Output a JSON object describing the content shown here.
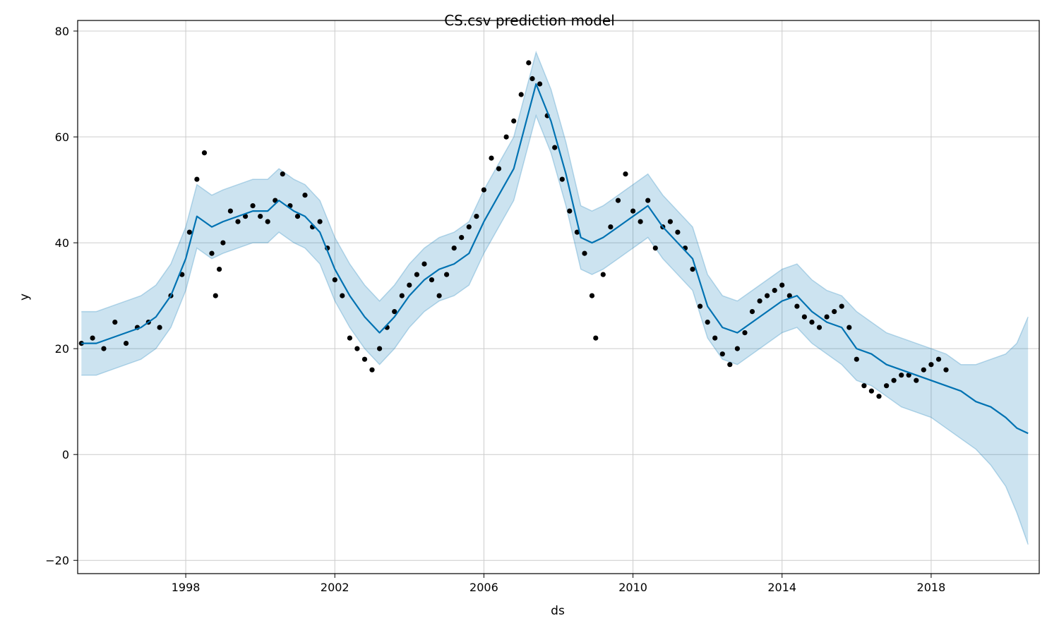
{
  "chart_data": {
    "type": "line",
    "title": "CS.csv prediction model",
    "xlabel": "ds",
    "ylabel": "y",
    "xlim": [
      1995.1,
      2020.9
    ],
    "ylim": [
      -22.5,
      82
    ],
    "x_ticks": [
      1998,
      2002,
      2006,
      2010,
      2014,
      2018
    ],
    "y_ticks": [
      -20,
      0,
      20,
      40,
      60,
      80
    ],
    "y_tick_labels": [
      "−20",
      "0",
      "20",
      "40",
      "60",
      "80"
    ],
    "grid": true,
    "colors": {
      "forecast": "#0072b2",
      "interval_fill": "#0072b2",
      "observed": "#000000"
    },
    "series": [
      {
        "kind": "forecast",
        "x": [
          1995.2,
          1995.6,
          1996.0,
          1996.4,
          1996.8,
          1997.2,
          1997.6,
          1998.0,
          1998.3,
          1998.7,
          1999.0,
          1999.4,
          1999.8,
          2000.2,
          2000.5,
          2000.9,
          2001.2,
          2001.6,
          2002.0,
          2002.4,
          2002.8,
          2003.2,
          2003.6,
          2004.0,
          2004.4,
          2004.8,
          2005.2,
          2005.6,
          2006.0,
          2006.4,
          2006.8,
          2007.1,
          2007.4,
          2007.8,
          2008.2,
          2008.6,
          2008.9,
          2009.2,
          2009.6,
          2010.0,
          2010.4,
          2010.8,
          2011.2,
          2011.6,
          2012.0,
          2012.4,
          2012.8,
          2013.2,
          2013.6,
          2014.0,
          2014.4,
          2014.8,
          2015.2,
          2015.6,
          2016.0,
          2016.4,
          2016.8,
          2017.2,
          2017.6,
          2018.0,
          2018.4,
          2018.8,
          2019.2,
          2019.6,
          2020.0,
          2020.3,
          2020.6
        ],
        "y": [
          21,
          21,
          22,
          23,
          24,
          26,
          30,
          37,
          45,
          43,
          44,
          45,
          46,
          46,
          48,
          46,
          45,
          42,
          35,
          30,
          26,
          23,
          26,
          30,
          33,
          35,
          36,
          38,
          44,
          49,
          54,
          62,
          70,
          63,
          53,
          41,
          40,
          41,
          43,
          45,
          47,
          43,
          40,
          37,
          28,
          24,
          23,
          25,
          27,
          29,
          30,
          27,
          25,
          24,
          20,
          19,
          17,
          16,
          15,
          14,
          13,
          12,
          10,
          9,
          7,
          5,
          4
        ]
      },
      {
        "kind": "interval",
        "x": [
          1995.2,
          1995.6,
          1996.0,
          1996.4,
          1996.8,
          1997.2,
          1997.6,
          1998.0,
          1998.3,
          1998.7,
          1999.0,
          1999.4,
          1999.8,
          2000.2,
          2000.5,
          2000.9,
          2001.2,
          2001.6,
          2002.0,
          2002.4,
          2002.8,
          2003.2,
          2003.6,
          2004.0,
          2004.4,
          2004.8,
          2005.2,
          2005.6,
          2006.0,
          2006.4,
          2006.8,
          2007.1,
          2007.4,
          2007.8,
          2008.2,
          2008.6,
          2008.9,
          2009.2,
          2009.6,
          2010.0,
          2010.4,
          2010.8,
          2011.2,
          2011.6,
          2012.0,
          2012.4,
          2012.8,
          2013.2,
          2013.6,
          2014.0,
          2014.4,
          2014.8,
          2015.2,
          2015.6,
          2016.0,
          2016.4,
          2016.8,
          2017.2,
          2017.6,
          2018.0,
          2018.4,
          2018.8,
          2019.2,
          2019.6,
          2020.0,
          2020.3,
          2020.6
        ],
        "lower": [
          15,
          15,
          16,
          17,
          18,
          20,
          24,
          31,
          39,
          37,
          38,
          39,
          40,
          40,
          42,
          40,
          39,
          36,
          29,
          24,
          20,
          17,
          20,
          24,
          27,
          29,
          30,
          32,
          38,
          43,
          48,
          56,
          64,
          57,
          47,
          35,
          34,
          35,
          37,
          39,
          41,
          37,
          34,
          31,
          22,
          18,
          17,
          19,
          21,
          23,
          24,
          21,
          19,
          17,
          14,
          13,
          11,
          9,
          8,
          7,
          5,
          3,
          1,
          -2,
          -6,
          -11,
          -17
        ],
        "upper": [
          27,
          27,
          28,
          29,
          30,
          32,
          36,
          43,
          51,
          49,
          50,
          51,
          52,
          52,
          54,
          52,
          51,
          48,
          41,
          36,
          32,
          29,
          32,
          36,
          39,
          41,
          42,
          44,
          50,
          55,
          60,
          68,
          76,
          69,
          59,
          47,
          46,
          47,
          49,
          51,
          53,
          49,
          46,
          43,
          34,
          30,
          29,
          31,
          33,
          35,
          36,
          33,
          31,
          30,
          27,
          25,
          23,
          22,
          21,
          20,
          19,
          17,
          17,
          18,
          19,
          21,
          26
        ]
      },
      {
        "kind": "observed",
        "x": [
          1995.2,
          1995.5,
          1995.8,
          1996.1,
          1996.4,
          1996.7,
          1997.0,
          1997.3,
          1997.6,
          1997.9,
          1998.1,
          1998.3,
          1998.5,
          1998.7,
          1998.8,
          1998.9,
          1999.0,
          1999.2,
          1999.4,
          1999.6,
          1999.8,
          2000.0,
          2000.2,
          2000.4,
          2000.6,
          2000.8,
          2001.0,
          2001.2,
          2001.4,
          2001.6,
          2001.8,
          2002.0,
          2002.2,
          2002.4,
          2002.6,
          2002.8,
          2003.0,
          2003.2,
          2003.4,
          2003.6,
          2003.8,
          2004.0,
          2004.2,
          2004.4,
          2004.6,
          2004.8,
          2005.0,
          2005.2,
          2005.4,
          2005.6,
          2005.8,
          2006.0,
          2006.2,
          2006.4,
          2006.6,
          2006.8,
          2007.0,
          2007.2,
          2007.3,
          2007.5,
          2007.7,
          2007.9,
          2008.1,
          2008.3,
          2008.5,
          2008.7,
          2008.9,
          2009.0,
          2009.2,
          2009.4,
          2009.6,
          2009.8,
          2010.0,
          2010.2,
          2010.4,
          2010.6,
          2010.8,
          2011.0,
          2011.2,
          2011.4,
          2011.6,
          2011.8,
          2012.0,
          2012.2,
          2012.4,
          2012.6,
          2012.8,
          2013.0,
          2013.2,
          2013.4,
          2013.6,
          2013.8,
          2014.0,
          2014.2,
          2014.4,
          2014.6,
          2014.8,
          2015.0,
          2015.2,
          2015.4,
          2015.6,
          2015.8,
          2016.0,
          2016.2,
          2016.4,
          2016.6,
          2016.8,
          2017.0,
          2017.2,
          2017.4,
          2017.6,
          2017.8,
          2018.0,
          2018.2,
          2018.4
        ],
        "y": [
          21,
          22,
          20,
          25,
          21,
          24,
          25,
          24,
          30,
          34,
          42,
          52,
          57,
          38,
          30,
          35,
          40,
          46,
          44,
          45,
          47,
          45,
          44,
          48,
          53,
          47,
          45,
          49,
          43,
          44,
          39,
          33,
          30,
          22,
          20,
          18,
          16,
          20,
          24,
          27,
          30,
          32,
          34,
          36,
          33,
          30,
          34,
          39,
          41,
          43,
          45,
          50,
          56,
          54,
          60,
          63,
          68,
          74,
          71,
          70,
          64,
          58,
          52,
          46,
          42,
          38,
          30,
          22,
          34,
          43,
          48,
          53,
          46,
          44,
          48,
          39,
          43,
          44,
          42,
          39,
          35,
          28,
          25,
          22,
          19,
          17,
          20,
          23,
          27,
          29,
          30,
          31,
          32,
          30,
          28,
          26,
          25,
          24,
          26,
          27,
          28,
          24,
          18,
          13,
          12,
          11,
          13,
          14,
          15,
          15,
          14,
          16,
          17,
          18,
          16
        ]
      }
    ]
  }
}
